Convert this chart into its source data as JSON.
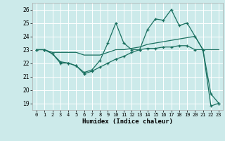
{
  "xlabel": "Humidex (Indice chaleur)",
  "bg_color": "#cceaea",
  "grid_color": "#ffffff",
  "line_color": "#1a7060",
  "ylim": [
    18.5,
    26.5
  ],
  "xlim": [
    -0.5,
    23.5
  ],
  "yticks": [
    19,
    20,
    21,
    22,
    23,
    24,
    25,
    26
  ],
  "xticks": [
    0,
    1,
    2,
    3,
    4,
    5,
    6,
    7,
    8,
    9,
    10,
    11,
    12,
    13,
    14,
    15,
    16,
    17,
    18,
    19,
    20,
    21,
    22,
    23
  ],
  "line1_x": [
    0,
    1,
    2,
    3,
    4,
    5,
    6,
    7,
    8,
    9,
    10,
    11,
    12,
    13,
    14,
    15,
    16,
    17,
    18,
    19,
    20,
    21,
    22,
    23
  ],
  "line1_y": [
    23,
    23,
    22.7,
    22.1,
    22.0,
    21.8,
    21.3,
    21.5,
    22.2,
    23.5,
    25.0,
    23.5,
    23.0,
    23.0,
    24.5,
    25.3,
    25.2,
    26.0,
    24.8,
    25.0,
    24.0,
    23.0,
    19.7,
    19.0
  ],
  "line2_x": [
    0,
    1,
    2,
    3,
    4,
    5,
    6,
    7,
    8,
    9,
    10,
    11,
    12,
    13,
    14,
    15,
    16,
    17,
    18,
    19,
    20,
    21,
    22,
    23
  ],
  "line2_y": [
    23,
    23,
    22.8,
    22.8,
    22.8,
    22.8,
    22.6,
    22.6,
    22.6,
    22.8,
    23.0,
    23.0,
    23.1,
    23.2,
    23.4,
    23.5,
    23.6,
    23.7,
    23.8,
    23.9,
    24.0,
    23.0,
    23.0,
    23.0
  ],
  "line3_x": [
    0,
    1,
    2,
    3,
    4,
    5,
    6,
    7,
    8,
    9,
    10,
    11,
    12,
    13,
    14,
    15,
    16,
    17,
    18,
    19,
    20,
    21,
    22,
    23
  ],
  "line3_y": [
    23,
    23,
    22.7,
    22.0,
    22.0,
    21.8,
    21.2,
    21.4,
    21.7,
    22.0,
    22.3,
    22.5,
    22.8,
    23.0,
    23.1,
    23.1,
    23.2,
    23.2,
    23.3,
    23.3,
    23.0,
    23.0,
    18.8,
    19.0
  ]
}
